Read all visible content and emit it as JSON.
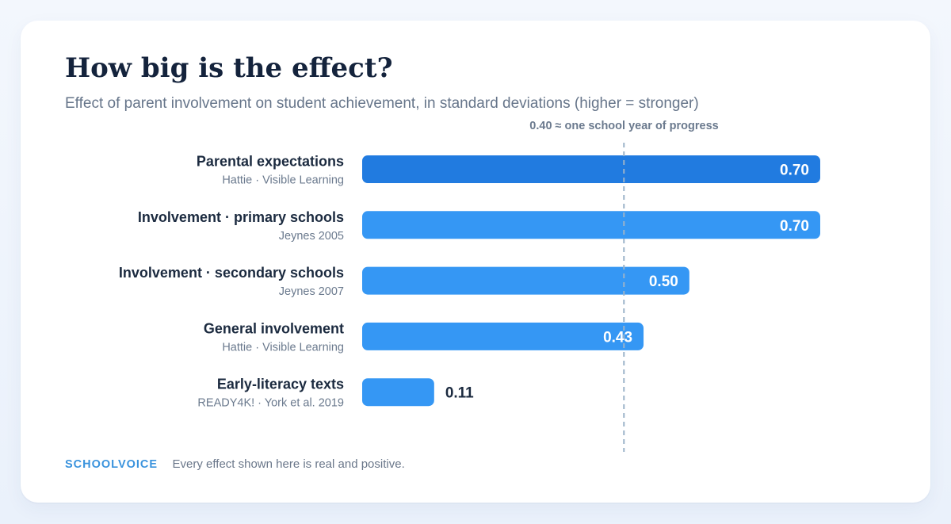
{
  "header": {
    "title": "How big is the effect?",
    "subtitle": "Effect of parent involvement on student achievement, in standard deviations (higher = stronger)"
  },
  "reference_line": {
    "value": 0.4,
    "label": "0.40 ≈ one school year of progress",
    "color": "#9bb3c9"
  },
  "chart_data": {
    "type": "bar",
    "orientation": "horizontal",
    "title": "How big is the effect?",
    "subtitle": "Effect of parent involvement on student achievement, in standard deviations (higher = stronger)",
    "xlabel": "",
    "ylabel": "",
    "xlim": [
      0,
      0.7
    ],
    "grid": false,
    "categories": [
      "Parental expectations",
      "Involvement · primary schools",
      "Involvement · secondary schools",
      "General involvement",
      "Early-literacy texts"
    ],
    "sources": [
      "Hattie · Visible Learning",
      "Jeynes 2005",
      "Jeynes 2007",
      "Hattie · Visible Learning",
      "READY4K! · York et al. 2019"
    ],
    "values": [
      0.7,
      0.7,
      0.5,
      0.43,
      0.11
    ],
    "value_labels": [
      "0.70",
      "0.70",
      "0.50",
      "0.43",
      "0.11"
    ],
    "highlighted_index": 0,
    "colors": {
      "bar": "#3597f4",
      "highlight_bar": "#217be0",
      "value_inside": "#ffffff",
      "value_outside": "#1b2a3f"
    }
  },
  "footer": {
    "brand": "SCHOOLVOICE",
    "note": "Every effect shown here is real and positive."
  }
}
